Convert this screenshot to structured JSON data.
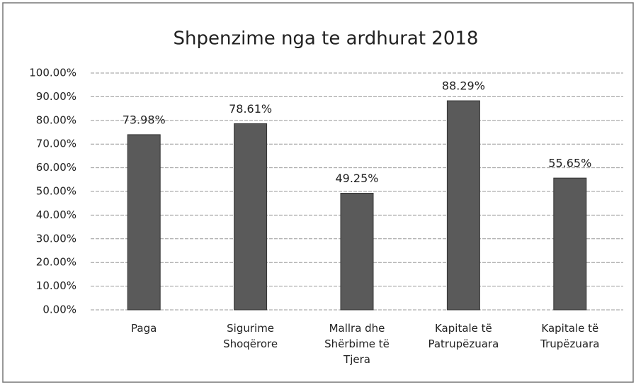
{
  "chart_data": {
    "type": "bar",
    "title": "Shpenzime nga te ardhurat 2018",
    "categories": [
      "Paga",
      "Sigurime Shoqërore",
      "Mallra dhe Shërbime të Tjera",
      "Kapitale të Patrupëzuara",
      "Kapitale të Trupëzuara"
    ],
    "values": [
      73.98,
      78.61,
      49.25,
      88.29,
      55.65
    ],
    "value_labels": [
      "73.98%",
      "78.61%",
      "49.25%",
      "88.29%",
      "55.65%"
    ],
    "color": "#5a5a5a",
    "ylim": [
      0,
      100
    ],
    "yticks": [
      {
        "value": 0,
        "label": "0.00%"
      },
      {
        "value": 10,
        "label": "10.00%"
      },
      {
        "value": 20,
        "label": "20.00%"
      },
      {
        "value": 30,
        "label": "30.00%"
      },
      {
        "value": 40,
        "label": "40.00%"
      },
      {
        "value": 50,
        "label": "50.00%"
      },
      {
        "value": 60,
        "label": "60.00%"
      },
      {
        "value": 70,
        "label": "70.00%"
      },
      {
        "value": 80,
        "label": "80.00%"
      },
      {
        "value": 90,
        "label": "90.00%"
      },
      {
        "value": 100,
        "label": "100.00%"
      }
    ],
    "grid": true
  }
}
